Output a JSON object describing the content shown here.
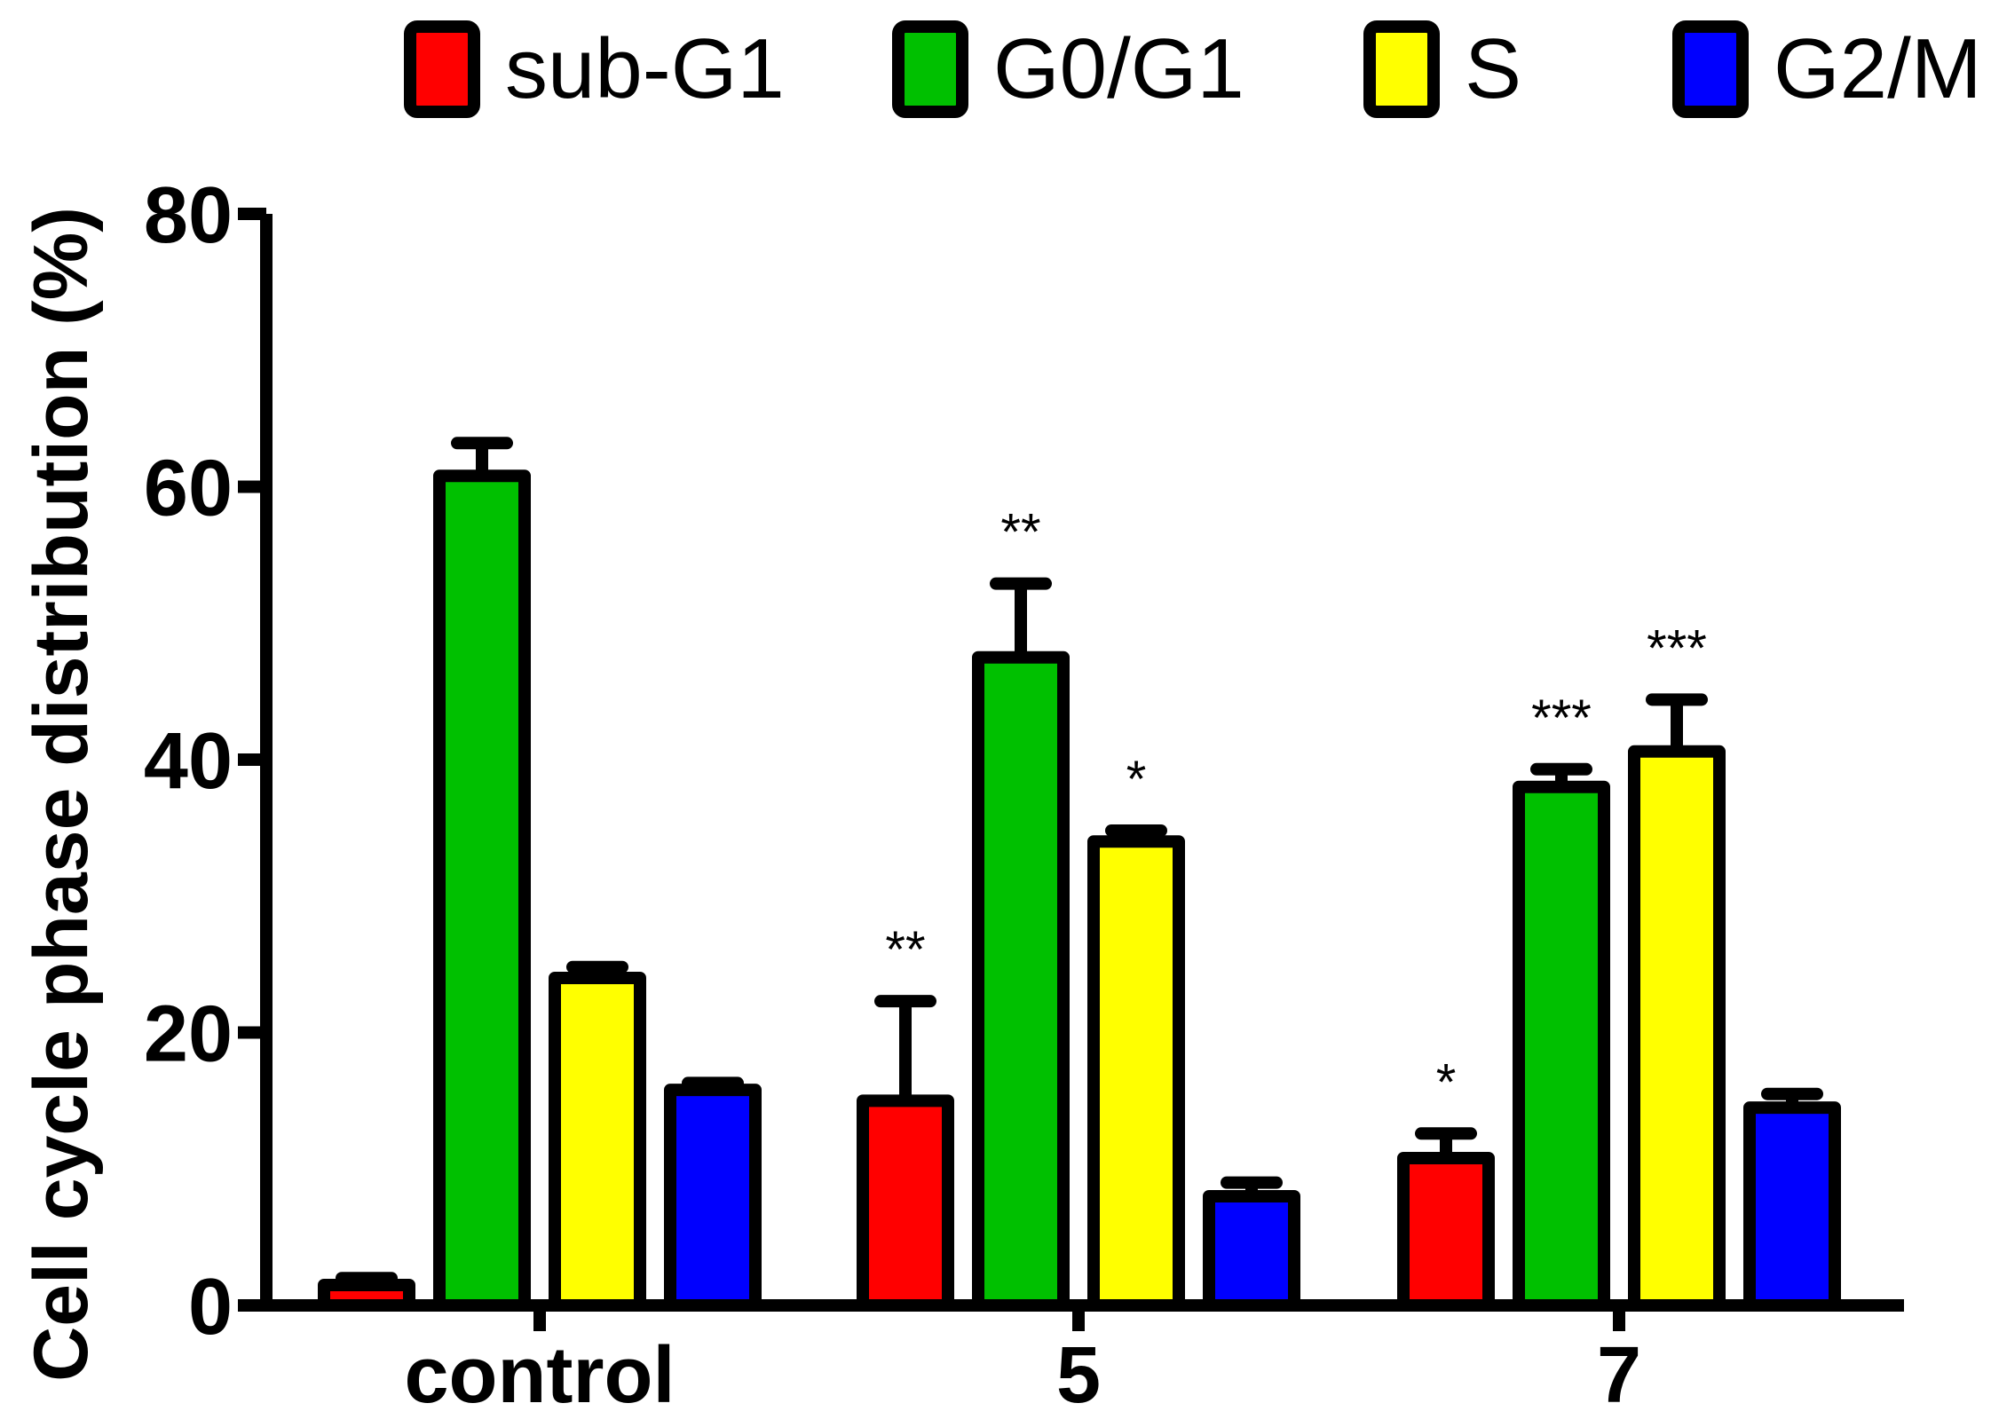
{
  "chart_data": {
    "type": "bar",
    "title": "",
    "xlabel": "",
    "ylabel": "Cell cycle phase distribution (%)",
    "ylim": [
      0,
      80
    ],
    "yticks": [
      "0",
      "20",
      "40",
      "60",
      "80"
    ],
    "ytick_values": [
      0,
      20,
      40,
      60,
      80
    ],
    "grid": false,
    "legend_position": "top",
    "categories": [
      "control",
      "5",
      "7"
    ],
    "series": [
      {
        "name": "sub-G1",
        "color": "#ff0000",
        "values": [
          1.5,
          15,
          10.8
        ],
        "errors": [
          0.5,
          7.3,
          1.8
        ],
        "significance": [
          "",
          "**",
          "*"
        ]
      },
      {
        "name": "G0/G1",
        "color": "#00c000",
        "values": [
          60.8,
          47.5,
          38.0
        ],
        "errors": [
          2.4,
          5.4,
          1.3
        ],
        "significance": [
          "",
          "**",
          "***"
        ]
      },
      {
        "name": "S",
        "color": "#ffff00",
        "values": [
          24.0,
          34.0,
          40.6
        ],
        "errors": [
          0.8,
          0.8,
          3.8
        ],
        "significance": [
          "",
          "*",
          "***"
        ]
      },
      {
        "name": "G2/M",
        "color": "#0000ff",
        "values": [
          15.8,
          8.0,
          14.5
        ],
        "errors": [
          0.5,
          1.0,
          1.0
        ],
        "significance": [
          "",
          "",
          ""
        ]
      }
    ]
  }
}
